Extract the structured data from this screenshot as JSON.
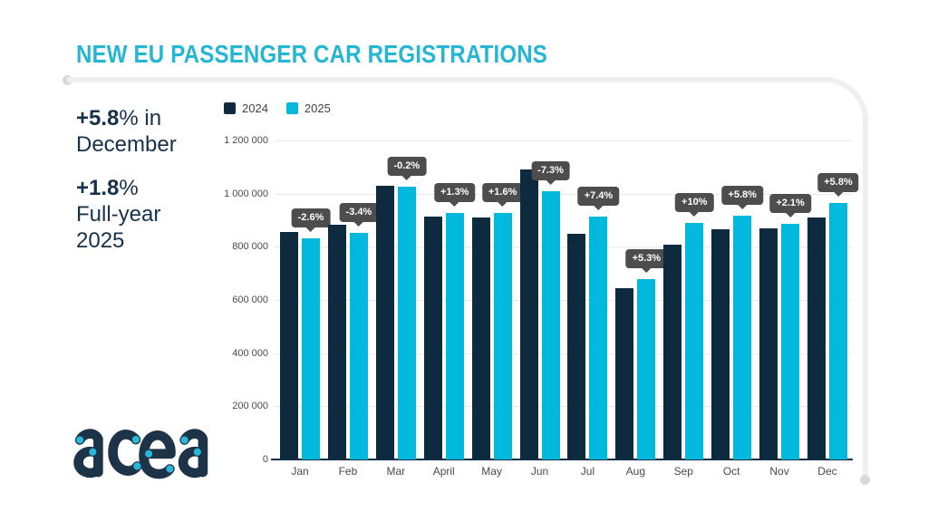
{
  "page": {
    "title": "NEW EU PASSENGER CAR REGISTRATIONS",
    "brand": "acea"
  },
  "highlights": {
    "first": {
      "bold": "+5.8",
      "regular": "% in",
      "line2": "December"
    },
    "second": {
      "bold": "+1.8",
      "regular": "%",
      "line2": "Full-year",
      "line3": "2025"
    }
  },
  "legend": {
    "items": [
      {
        "label": "2024",
        "color": "#0d2a3f"
      },
      {
        "label": "2025",
        "color": "#00b9dd"
      }
    ]
  },
  "colors": {
    "title_cyan": "#24b6d4",
    "navy": "#17314a",
    "bar_2024": "#0d2a3f",
    "bar_2025": "#00b9dd",
    "tooltip_bg": "#4d4d4d",
    "gridline": "#e9e9e9",
    "frame_gray": "#efefef"
  },
  "chart_data": {
    "type": "bar",
    "title": "NEW EU PASSENGER CAR REGISTRATIONS",
    "xlabel": "",
    "ylabel": "",
    "categories": [
      "Jan",
      "Feb",
      "Mar",
      "April",
      "May",
      "Jun",
      "Jul",
      "Aug",
      "Sep",
      "Oct",
      "Nov",
      "Dec"
    ],
    "series": [
      {
        "name": "2024",
        "color": "#0d2a3f",
        "values": [
          855000,
          883000,
          1029000,
          914000,
          911000,
          1090000,
          850000,
          644000,
          809000,
          866000,
          870000,
          911000
        ]
      },
      {
        "name": "2025",
        "color": "#00b9dd",
        "values": [
          832000,
          853000,
          1027000,
          926000,
          926000,
          1010000,
          913000,
          678000,
          890000,
          916000,
          888000,
          964000
        ]
      }
    ],
    "pct_change_labels": [
      "-2.6%",
      "-3.4%",
      "-0.2%",
      "+1.3%",
      "+1.6%",
      "-7.3%",
      "+7.4%",
      "+5.3%",
      "+10%",
      "+5.8%",
      "+2.1%",
      "+5.8%"
    ],
    "ylim": [
      0,
      1200000
    ],
    "y_ticks": [
      "0",
      "200 000",
      "400 000",
      "600 000",
      "800 000",
      "1 000 000",
      "1 200 000"
    ],
    "grid": true,
    "legend_position": "top-left"
  }
}
